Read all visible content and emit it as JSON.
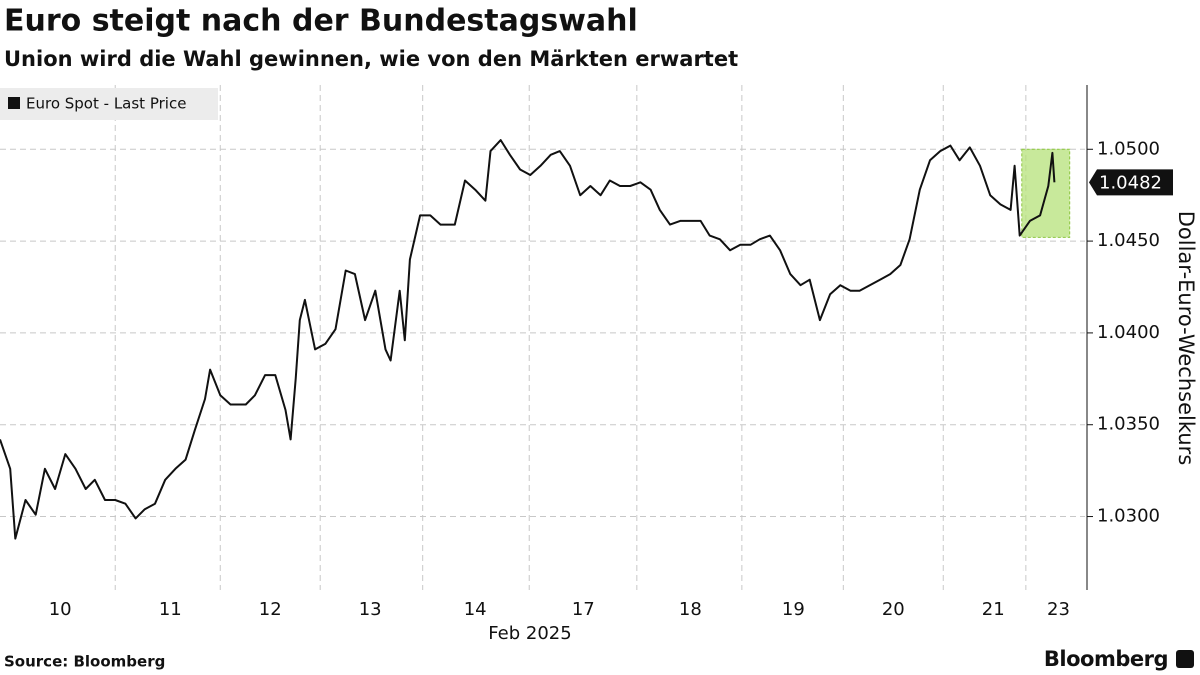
{
  "chart_data": {
    "type": "line",
    "title": "Euro steigt nach der Bundestagswahl",
    "subtitle": "Union wird die Wahl gewinnen, wie von den Märkten erwartet",
    "y_axis_label": "Dollar-Euro-Wechselkurs",
    "x_axis_label": "Feb 2025",
    "source": "Source: Bloomberg",
    "brand": "Bloomberg",
    "legend": "top-left",
    "grid": true,
    "xlim": [
      -0.16,
      10.48
    ],
    "ylim": [
      1.026,
      1.0535
    ],
    "xticks": [
      {
        "value": 0.43,
        "label": "10"
      },
      {
        "value": 1.51,
        "label": "11"
      },
      {
        "value": 2.49,
        "label": "12"
      },
      {
        "value": 3.47,
        "label": "13"
      },
      {
        "value": 4.5,
        "label": "14"
      },
      {
        "value": 5.56,
        "label": "17"
      },
      {
        "value": 6.61,
        "label": "18"
      },
      {
        "value": 7.62,
        "label": "19"
      },
      {
        "value": 8.6,
        "label": "20"
      },
      {
        "value": 9.58,
        "label": "21"
      },
      {
        "value": 10.22,
        "label": "23"
      }
    ],
    "yticks": [
      {
        "value": 1.03,
        "label": "1.0300"
      },
      {
        "value": 1.035,
        "label": "1.0350"
      },
      {
        "value": 1.04,
        "label": "1.0400"
      },
      {
        "value": 1.045,
        "label": "1.0450"
      },
      {
        "value": 1.05,
        "label": "1.0500"
      }
    ],
    "last_price": {
      "value": 1.0482,
      "label": "1.0482"
    },
    "highlight": {
      "xlim": [
        9.86,
        10.33
      ],
      "ylim": [
        1.0452,
        1.05
      ],
      "color": "#b5e27a"
    },
    "x": [
      -0.16,
      -0.06,
      -0.01,
      0.09,
      0.19,
      0.28,
      0.38,
      0.48,
      0.58,
      0.68,
      0.77,
      0.87,
      0.97,
      1.07,
      1.17,
      1.26,
      1.36,
      1.46,
      1.56,
      1.66,
      1.75,
      1.85,
      1.9,
      2.0,
      2.1,
      2.25,
      2.34,
      2.44,
      2.54,
      2.64,
      2.69,
      2.74,
      2.78,
      2.83,
      2.93,
      3.03,
      3.13,
      3.23,
      3.32,
      3.42,
      3.52,
      3.62,
      3.67,
      3.76,
      3.81,
      3.86,
      3.96,
      4.06,
      4.16,
      4.3,
      4.4,
      4.5,
      4.6,
      4.65,
      4.75,
      4.84,
      4.94,
      5.04,
      5.14,
      5.24,
      5.33,
      5.43,
      5.53,
      5.63,
      5.73,
      5.82,
      5.92,
      6.02,
      6.12,
      6.22,
      6.31,
      6.41,
      6.51,
      6.61,
      6.71,
      6.8,
      6.9,
      7.0,
      7.1,
      7.2,
      7.29,
      7.39,
      7.49,
      7.59,
      7.69,
      7.78,
      7.88,
      7.98,
      8.08,
      8.18,
      8.27,
      8.37,
      8.47,
      8.57,
      8.67,
      8.76,
      8.86,
      8.96,
      9.06,
      9.16,
      9.25,
      9.35,
      9.45,
      9.55,
      9.65,
      9.75,
      9.79,
      9.84,
      9.94,
      10.04,
      10.12,
      10.16,
      10.18
    ],
    "series": [
      {
        "name": "Euro Spot - Last Price",
        "color": "#111111",
        "values": [
          1.0342,
          1.0326,
          1.0288,
          1.0309,
          1.0301,
          1.0326,
          1.0315,
          1.0334,
          1.0326,
          1.0315,
          1.032,
          1.0309,
          1.0309,
          1.0307,
          1.0299,
          1.0304,
          1.0307,
          1.032,
          1.0326,
          1.0331,
          1.0347,
          1.0364,
          1.038,
          1.0366,
          1.0361,
          1.0361,
          1.0366,
          1.0377,
          1.0377,
          1.0358,
          1.0342,
          1.0375,
          1.0407,
          1.0418,
          1.0391,
          1.0394,
          1.0402,
          1.0434,
          1.0432,
          1.0407,
          1.0423,
          1.0391,
          1.0385,
          1.0423,
          1.0396,
          1.044,
          1.0464,
          1.0464,
          1.0459,
          1.0459,
          1.0483,
          1.0478,
          1.0472,
          1.0499,
          1.0505,
          1.0497,
          1.0489,
          1.0486,
          1.0491,
          1.0497,
          1.0499,
          1.0491,
          1.0475,
          1.048,
          1.0475,
          1.0483,
          1.048,
          1.048,
          1.0482,
          1.0478,
          1.0467,
          1.0459,
          1.0461,
          1.0461,
          1.0461,
          1.0453,
          1.0451,
          1.0445,
          1.0448,
          1.0448,
          1.0451,
          1.0453,
          1.0445,
          1.0432,
          1.0426,
          1.0429,
          1.0407,
          1.0421,
          1.0426,
          1.0423,
          1.0423,
          1.0426,
          1.0429,
          1.0432,
          1.0437,
          1.0451,
          1.0478,
          1.0494,
          1.0499,
          1.0502,
          1.0494,
          1.0501,
          1.0491,
          1.0475,
          1.047,
          1.0467,
          1.0491,
          1.0453,
          1.0461,
          1.0464,
          1.048,
          1.0498,
          1.0482
        ]
      }
    ]
  }
}
